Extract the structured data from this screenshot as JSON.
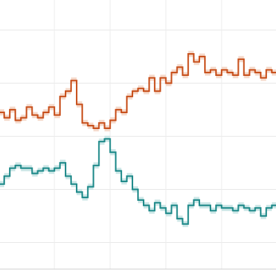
{
  "chart_data": {
    "type": "line",
    "step": true,
    "title": "",
    "xlabel": "",
    "ylabel": "",
    "grid": true,
    "legend": "none",
    "xlim": [
      0,
      100
    ],
    "ylim": [
      0,
      100
    ],
    "x": [
      0,
      2,
      4,
      6,
      8,
      10,
      12,
      14,
      16,
      18,
      20,
      22,
      24,
      26,
      28,
      30,
      32,
      34,
      36,
      38,
      40,
      42,
      44,
      46,
      48,
      50,
      52,
      54,
      56,
      58,
      60,
      62,
      64,
      66,
      68,
      70,
      72,
      74,
      76,
      78,
      80,
      82,
      84,
      86,
      88,
      90,
      92,
      94,
      96,
      98,
      100
    ],
    "series": [
      {
        "color": "#c8501c",
        "band_color": "#f3d3c3",
        "values": [
          59,
          57,
          60,
          56,
          57,
          61,
          58,
          57,
          59,
          61,
          58,
          65,
          67,
          71,
          62,
          55,
          54,
          53,
          55,
          53,
          56,
          60,
          59,
          65,
          67,
          68,
          67,
          72,
          67,
          72,
          70,
          74,
          76,
          73,
          81,
          78,
          80,
          74,
          75,
          73,
          75,
          74,
          73,
          79,
          73,
          75,
          74,
          72,
          75,
          74,
          70
        ]
      },
      {
        "color": "#1f8a8a",
        "band_color": "#c4e3e3",
        "values": [
          32,
          35,
          38,
          39,
          38,
          38,
          36,
          37,
          38,
          37,
          38,
          40,
          35,
          32,
          29,
          27,
          31,
          39,
          48,
          49,
          44,
          37,
          33,
          35,
          30,
          26,
          24,
          22,
          25,
          23,
          21,
          24,
          19,
          17,
          24,
          26,
          24,
          24,
          22,
          24,
          23,
          23,
          22,
          24,
          23,
          22,
          23,
          20,
          23,
          24,
          23
        ]
      }
    ]
  }
}
